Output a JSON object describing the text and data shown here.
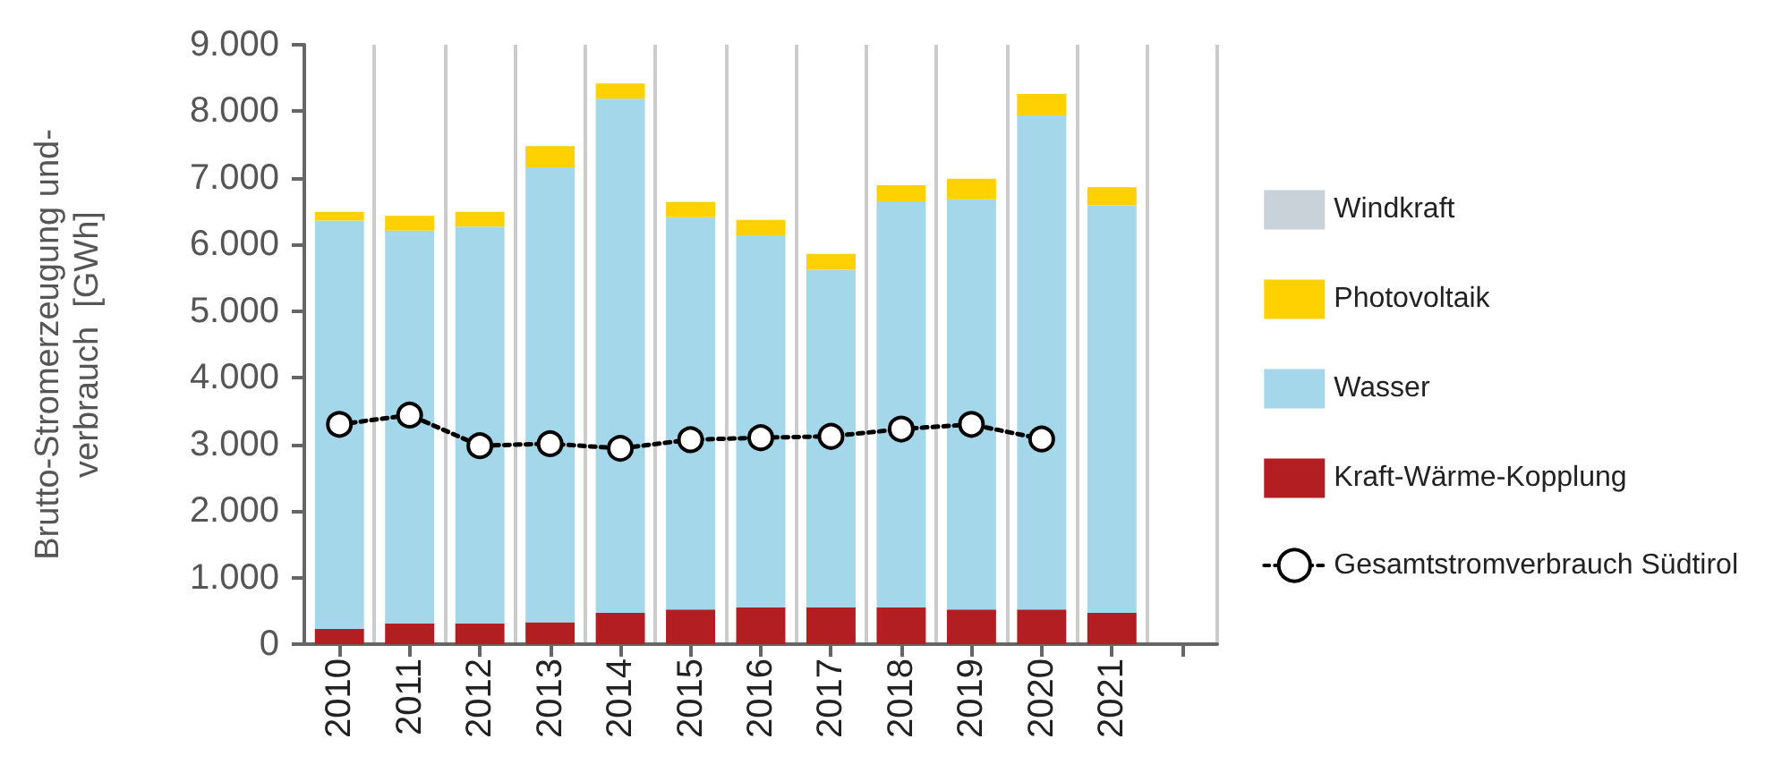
{
  "chart_data": {
    "type": "bar",
    "stacked": true,
    "ylabel": "Brutto-Stromerzeugung und-\nverbrauch  [GWh]",
    "categories": [
      "2010",
      "2011",
      "2012",
      "2013",
      "2014",
      "2015",
      "2016",
      "2017",
      "2018",
      "2019",
      "2020",
      "2021",
      null
    ],
    "series": [
      {
        "name": "Kraft-Wärme-Kopplung",
        "color": "#b31e22",
        "values": [
          230,
          310,
          310,
          330,
          470,
          520,
          550,
          550,
          550,
          520,
          520,
          470,
          null
        ]
      },
      {
        "name": "Wasser",
        "color": "#a4d7ea",
        "values": [
          6130,
          5900,
          5960,
          6830,
          7720,
          5890,
          5590,
          5070,
          6100,
          6160,
          7420,
          6120,
          null
        ]
      },
      {
        "name": "Photovoltaik",
        "color": "#ffd100",
        "values": [
          130,
          220,
          220,
          320,
          230,
          230,
          230,
          240,
          240,
          310,
          320,
          270,
          null
        ]
      },
      {
        "name": "Windkraft",
        "color": "#c9d1d9",
        "values": [
          0,
          0,
          0,
          0,
          0,
          0,
          0,
          0,
          0,
          0,
          0,
          0,
          null
        ]
      },
      {
        "name": "Gesamtstromverbrauch Südtirol",
        "type": "line",
        "color": "#000000",
        "marker": "circle",
        "line_style": "dashed",
        "values": [
          3300,
          3440,
          2980,
          3010,
          2940,
          3070,
          3100,
          3120,
          3230,
          3300,
          3080,
          null,
          null
        ]
      }
    ],
    "ylim": [
      0,
      9000
    ],
    "yticks": [
      {
        "value": 0,
        "label": "0"
      },
      {
        "value": 1000,
        "label": "1.000"
      },
      {
        "value": 2000,
        "label": "2.000"
      },
      {
        "value": 3000,
        "label": "3.000"
      },
      {
        "value": 4000,
        "label": "4.000"
      },
      {
        "value": 5000,
        "label": "5.000"
      },
      {
        "value": 6000,
        "label": "6.000"
      },
      {
        "value": 7000,
        "label": "7.000"
      },
      {
        "value": 8000,
        "label": "8.000"
      },
      {
        "value": 9000,
        "label": "9.000"
      }
    ],
    "grid": "x",
    "legend": "right"
  }
}
